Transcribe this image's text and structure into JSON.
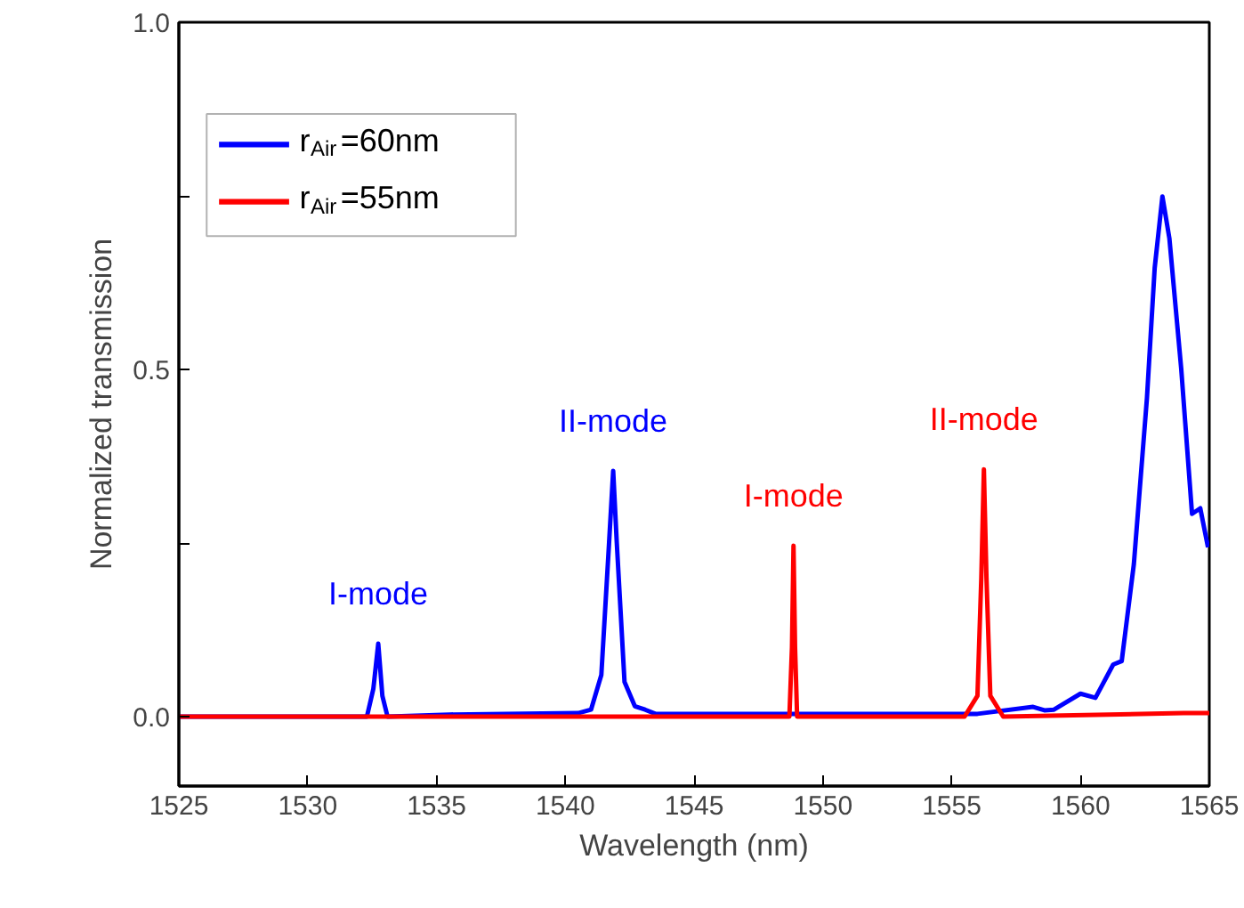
{
  "chart_data": {
    "type": "line",
    "xlabel": "Wavelength (nm)",
    "ylabel": "Normalized transmission",
    "xlim": [
      1525,
      1565
    ],
    "ylim": [
      -0.1,
      1.0
    ],
    "xticks": [
      1525,
      1530,
      1535,
      1540,
      1545,
      1550,
      1555,
      1560,
      1565
    ],
    "yticks": [
      {
        "value": 0,
        "label": "0.0"
      },
      {
        "value": 0.25,
        "label": null
      },
      {
        "value": 0.5,
        "label": "0.5"
      },
      {
        "value": 0.75,
        "label": null
      },
      {
        "value": 1.0,
        "label": "1.0"
      }
    ],
    "grid": false,
    "legend": "top left",
    "line_style": "solid",
    "marker": "none",
    "series": [
      {
        "name": "r$_{Air}$=60nm",
        "color": "#0000ff",
        "x": [
          1525,
          1532.3,
          1532.55,
          1532.74,
          1532.9,
          1533.1,
          1535.5,
          1540.5,
          1541.0,
          1541.4,
          1541.7,
          1541.86,
          1542.0,
          1542.3,
          1542.7,
          1543.1,
          1543.5,
          1550,
          1556,
          1558.16,
          1558.6,
          1558.97,
          1560.0,
          1560.58,
          1561.27,
          1561.6,
          1562.07,
          1562.58,
          1562.88,
          1563.18,
          1563.45,
          1563.91,
          1564.33,
          1564.65,
          1564.95
        ],
        "values": [
          0.0,
          0.0,
          0.04,
          0.105,
          0.03,
          0.0,
          0.003,
          0.005,
          0.01,
          0.06,
          0.25,
          0.354,
          0.25,
          0.05,
          0.015,
          0.01,
          0.004,
          0.004,
          0.004,
          0.014,
          0.009,
          0.01,
          0.033,
          0.027,
          0.075,
          0.08,
          0.219,
          0.459,
          0.646,
          0.749,
          0.689,
          0.501,
          0.292,
          0.3,
          0.244
        ]
      },
      {
        "name": "r$_{Air}$=55nm",
        "color": "#ff0000",
        "x": [
          1525,
          1540,
          1548.7,
          1548.8,
          1548.86,
          1548.92,
          1549.0,
          1555.5,
          1556.0,
          1556.15,
          1556.25,
          1556.35,
          1556.5,
          1557,
          1564,
          1565
        ],
        "values": [
          0.0,
          0.0,
          0.0,
          0.1,
          0.246,
          0.1,
          0.0,
          0.0,
          0.03,
          0.2,
          0.356,
          0.2,
          0.03,
          0.0,
          0.005,
          0.005
        ]
      }
    ],
    "annotations": [
      {
        "text": "I-mode",
        "x": 1532.74,
        "y": 0.105
      },
      {
        "text": "II-mode",
        "x": 1541.86,
        "y": 0.354
      },
      {
        "text": "I-mode",
        "x": 1548.86,
        "y": 0.246
      },
      {
        "text": "II-mode",
        "x": 1556.25,
        "y": 0.356
      }
    ]
  }
}
